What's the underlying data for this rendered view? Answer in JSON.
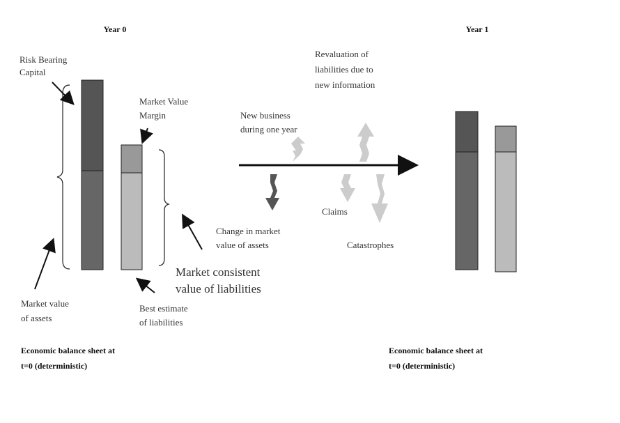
{
  "year0": "Year 0",
  "year1": "Year 1",
  "risk_bearing_capital": [
    "Risk Bearing",
    "Capital"
  ],
  "market_value_margin": [
    "Market Value",
    "Margin"
  ],
  "revaluation": [
    "Revaluation of",
    "liabilities due to",
    "new information"
  ],
  "new_business": [
    "New business",
    "during one year"
  ],
  "change_market_value": [
    "Change in market",
    "value of assets"
  ],
  "claims": "Claims",
  "catastrophes": "Catastrophes",
  "market_consistent": [
    "Market consistent",
    "value of liabilities"
  ],
  "market_value_assets": [
    "Market value",
    "of assets"
  ],
  "best_estimate": [
    "Best estimate",
    "of liabilities"
  ],
  "balance_sheet_0": [
    "Economic balance sheet at",
    "t=0 (deterministic)"
  ],
  "balance_sheet_1": [
    "Economic balance sheet at",
    "t=0 (deterministic)"
  ]
}
